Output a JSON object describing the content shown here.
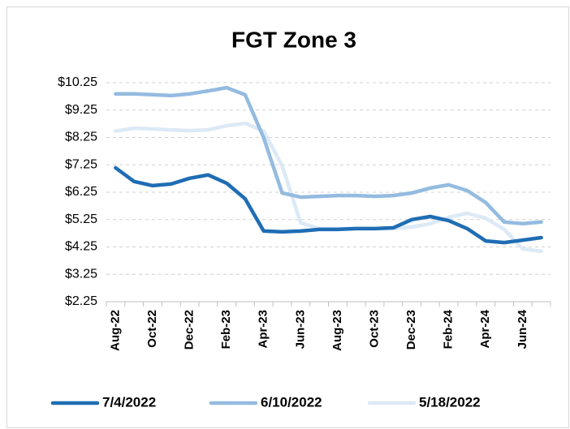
{
  "chart_data": {
    "type": "line",
    "title": "FGT Zone 3",
    "categories": [
      "Aug-22",
      null,
      "Oct-22",
      null,
      "Dec-22",
      null,
      "Feb-23",
      null,
      "Apr-23",
      null,
      "Jun-23",
      null,
      "Aug-23",
      null,
      "Oct-23",
      null,
      "Dec-23",
      null,
      "Feb-24",
      null,
      "Apr-24",
      null,
      "Jun-24",
      null
    ],
    "series": [
      {
        "name": "7/4/2022",
        "color": "#1f6db4",
        "values": [
          7.14,
          6.64,
          6.49,
          6.55,
          6.76,
          6.88,
          6.58,
          6.01,
          4.83,
          4.8,
          4.83,
          4.89,
          4.89,
          4.92,
          4.92,
          4.95,
          5.25,
          5.36,
          5.21,
          4.92,
          4.47,
          4.41,
          4.5,
          4.59
        ]
      },
      {
        "name": "6/10/2022",
        "color": "#94bbe0",
        "values": [
          9.84,
          9.84,
          9.81,
          9.78,
          9.84,
          9.95,
          10.07,
          9.81,
          8.24,
          6.22,
          6.07,
          6.1,
          6.13,
          6.13,
          6.1,
          6.13,
          6.22,
          6.4,
          6.52,
          6.31,
          5.87,
          5.16,
          5.1,
          5.16
        ]
      },
      {
        "name": "5/18/2022",
        "color": "#dce9f6",
        "values": [
          8.48,
          8.59,
          8.56,
          8.53,
          8.5,
          8.53,
          8.68,
          8.77,
          8.48,
          7.21,
          5.13,
          4.92,
          4.92,
          4.92,
          4.92,
          4.92,
          4.98,
          5.1,
          5.33,
          5.48,
          5.3,
          4.89,
          4.18,
          4.09
        ]
      }
    ],
    "ylim": [
      2.25,
      10.25
    ],
    "yticks": [
      {
        "value": 2.25,
        "label": "$2.25"
      },
      {
        "value": 3.25,
        "label": "$3.25"
      },
      {
        "value": 4.25,
        "label": "$4.25"
      },
      {
        "value": 5.25,
        "label": "$5.25"
      },
      {
        "value": 6.25,
        "label": "$6.25"
      },
      {
        "value": 7.25,
        "label": "$7.25"
      },
      {
        "value": 8.25,
        "label": "$8.25"
      },
      {
        "value": 9.25,
        "label": "$9.25"
      },
      {
        "value": 10.25,
        "label": "$10.25"
      }
    ],
    "grid": true,
    "legend": "bottom"
  }
}
